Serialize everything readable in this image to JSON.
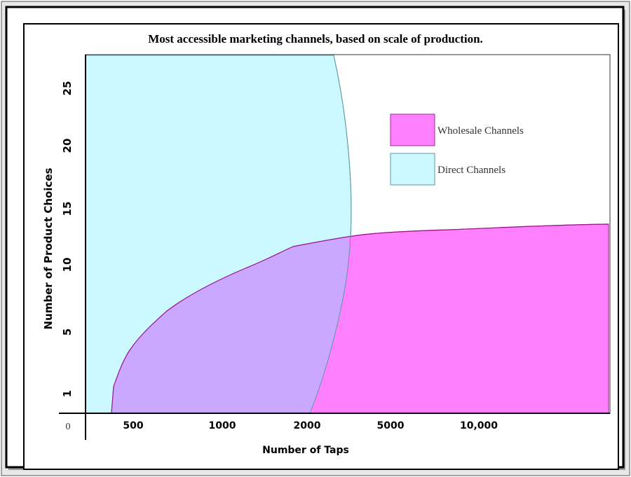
{
  "chart_data": {
    "type": "area",
    "title": "Most accessible marketing channels, based on scale of production.",
    "xlabel": "Number of Taps",
    "ylabel": "Number of Product Choices",
    "x_tick_labels": [
      "0",
      "500",
      "1000",
      "2000",
      "5000",
      "10,000"
    ],
    "y_tick_labels": [
      "1",
      "5",
      "10",
      "15",
      "20",
      "25"
    ],
    "ylim": [
      0,
      27
    ],
    "legend_position": "top-right",
    "grid": false,
    "series": [
      {
        "name": "Wholesale Channels",
        "color": "#ff66ff",
        "x": [
          350,
          370,
          420,
          500,
          700,
          1000,
          1500,
          2000,
          2600,
          5000,
          10000,
          20000
        ],
        "y": [
          0,
          2,
          4,
          5.2,
          7.3,
          9,
          10.5,
          11.4,
          12.2,
          12.8,
          13.2,
          13.6
        ]
      },
      {
        "name": "Direct Channels",
        "color": "#ccf9ff",
        "x": [
          1900,
          2100,
          2300,
          2450,
          2600,
          2700,
          2750,
          2700,
          2500,
          2300
        ],
        "y": [
          0,
          2.5,
          5,
          7.5,
          10,
          12.5,
          15,
          20,
          25,
          27
        ]
      }
    ],
    "overlap_color": "#c9a4ff"
  }
}
